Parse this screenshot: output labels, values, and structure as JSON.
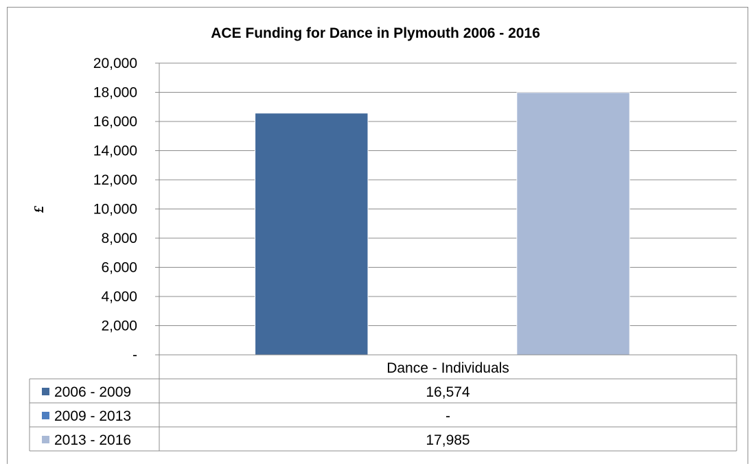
{
  "chart_data": {
    "type": "bar",
    "title": "ACE Funding for Dance in Plymouth 2006 - 2016",
    "ylabel": "£",
    "xlabel": "",
    "categories": [
      "Dance - Individuals"
    ],
    "ylim": [
      0,
      20000
    ],
    "ytick_labels": [
      "-",
      "2,000",
      "4,000",
      "6,000",
      "8,000",
      "10,000",
      "12,000",
      "14,000",
      "16,000",
      "18,000",
      "20,000"
    ],
    "grid": true,
    "legend": "data-table",
    "series": [
      {
        "name": "2006 - 2009",
        "values": [
          16574
        ],
        "table_labels": [
          "16,574"
        ],
        "color": "#426a9b"
      },
      {
        "name": "2009 - 2013",
        "values": [
          0
        ],
        "table_labels": [
          "-"
        ],
        "color": "#4d7ec0"
      },
      {
        "name": "2013 - 2016",
        "values": [
          17985
        ],
        "table_labels": [
          "17,985"
        ],
        "color": "#a9b9d6"
      }
    ]
  }
}
